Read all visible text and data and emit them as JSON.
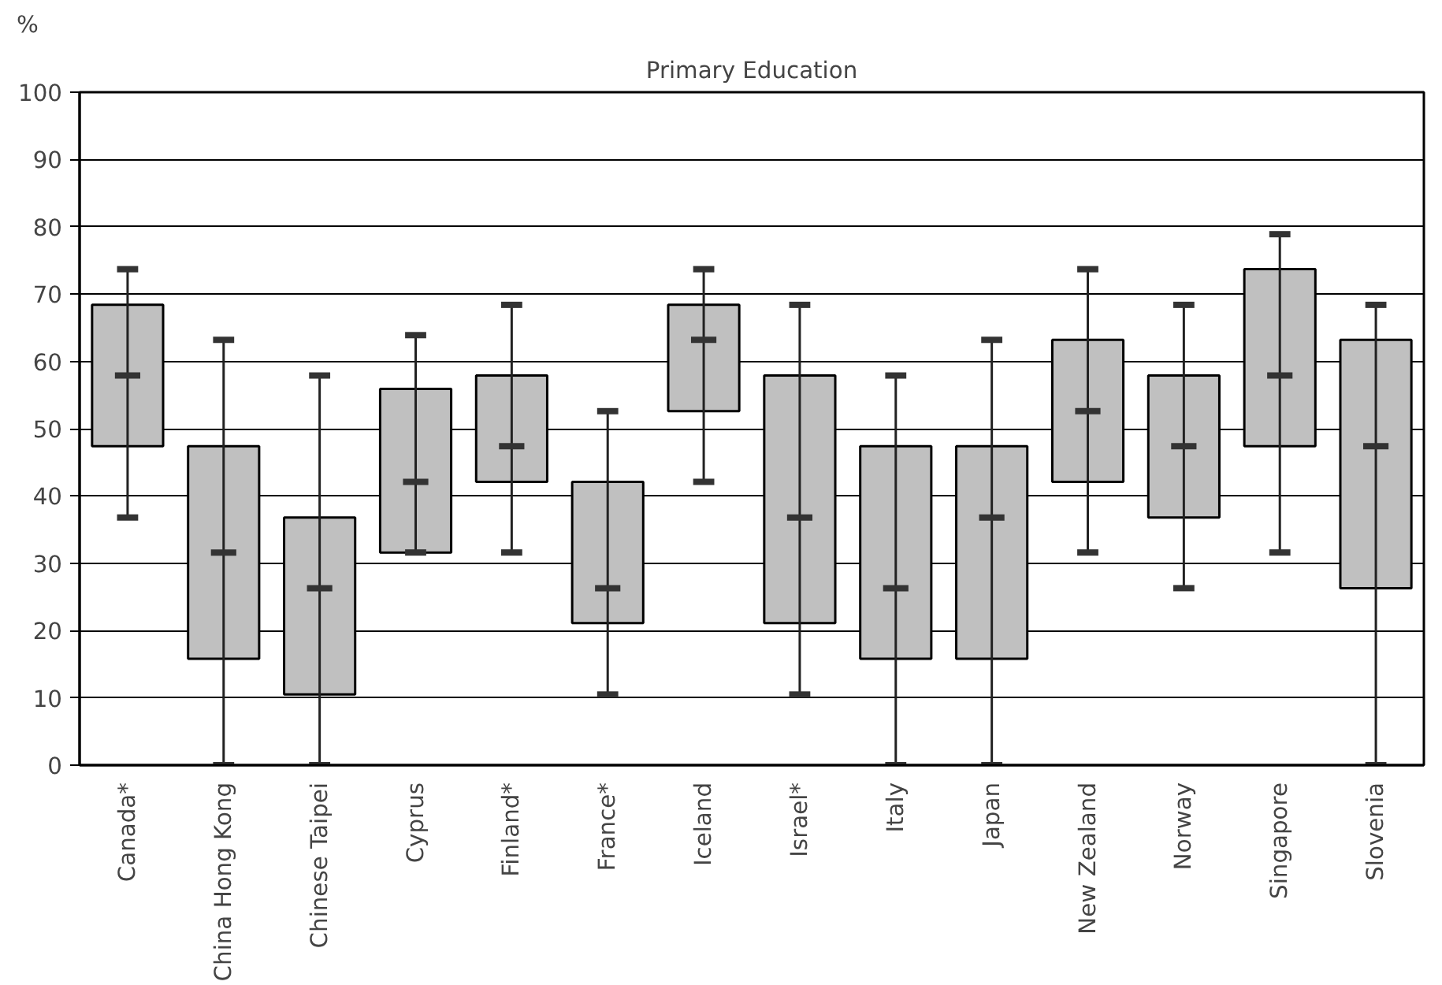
{
  "chart_data": {
    "type": "box",
    "title": "Primary Education",
    "ylabel": "%",
    "categories": [
      "Canada*",
      "China Hong Kong",
      "Chinese Taipei",
      "Cyprus",
      "Finland*",
      "France*",
      "Iceland",
      "Israel*",
      "Italy",
      "Japan",
      "New Zealand",
      "Norway",
      "Singapore",
      "Slovenia"
    ],
    "boxes": [
      {
        "low": 36.8,
        "q1": 47.4,
        "median": 57.9,
        "q3": 68.4,
        "high": 73.7
      },
      {
        "low": 0,
        "q1": 15.8,
        "median": 31.6,
        "q3": 47.4,
        "high": 63.2
      },
      {
        "low": 0,
        "q1": 10.5,
        "median": 26.3,
        "q3": 36.8,
        "high": 57.9
      },
      {
        "low": 31.6,
        "q1": 31.6,
        "median": 42.1,
        "q3": 55.9,
        "high": 63.9
      },
      {
        "low": 31.6,
        "q1": 42.1,
        "median": 47.4,
        "q3": 57.9,
        "high": 68.4
      },
      {
        "low": 10.5,
        "q1": 21.1,
        "median": 26.3,
        "q3": 42.1,
        "high": 52.6
      },
      {
        "low": 42.1,
        "q1": 52.6,
        "median": 63.2,
        "q3": 68.4,
        "high": 73.7
      },
      {
        "low": 10.5,
        "q1": 21.1,
        "median": 36.8,
        "q3": 57.9,
        "high": 68.4
      },
      {
        "low": 0,
        "q1": 15.8,
        "median": 26.3,
        "q3": 47.4,
        "high": 57.9
      },
      {
        "low": 0,
        "q1": 15.8,
        "median": 36.8,
        "q3": 47.4,
        "high": 63.2
      },
      {
        "low": 31.6,
        "q1": 42.1,
        "median": 52.6,
        "q3": 63.2,
        "high": 73.7
      },
      {
        "low": 26.3,
        "q1": 36.8,
        "median": 47.4,
        "q3": 57.9,
        "high": 68.4
      },
      {
        "low": 31.6,
        "q1": 47.4,
        "median": 57.9,
        "q3": 73.7,
        "high": 78.9
      },
      {
        "low": 0,
        "q1": 26.3,
        "median": 47.4,
        "q3": 63.2,
        "high": 68.4
      }
    ],
    "color": "#c0c0c0",
    "ylim": [
      0,
      100
    ],
    "yticks": [
      0,
      10,
      20,
      30,
      40,
      50,
      60,
      70,
      80,
      90,
      100
    ],
    "grid": "y"
  }
}
